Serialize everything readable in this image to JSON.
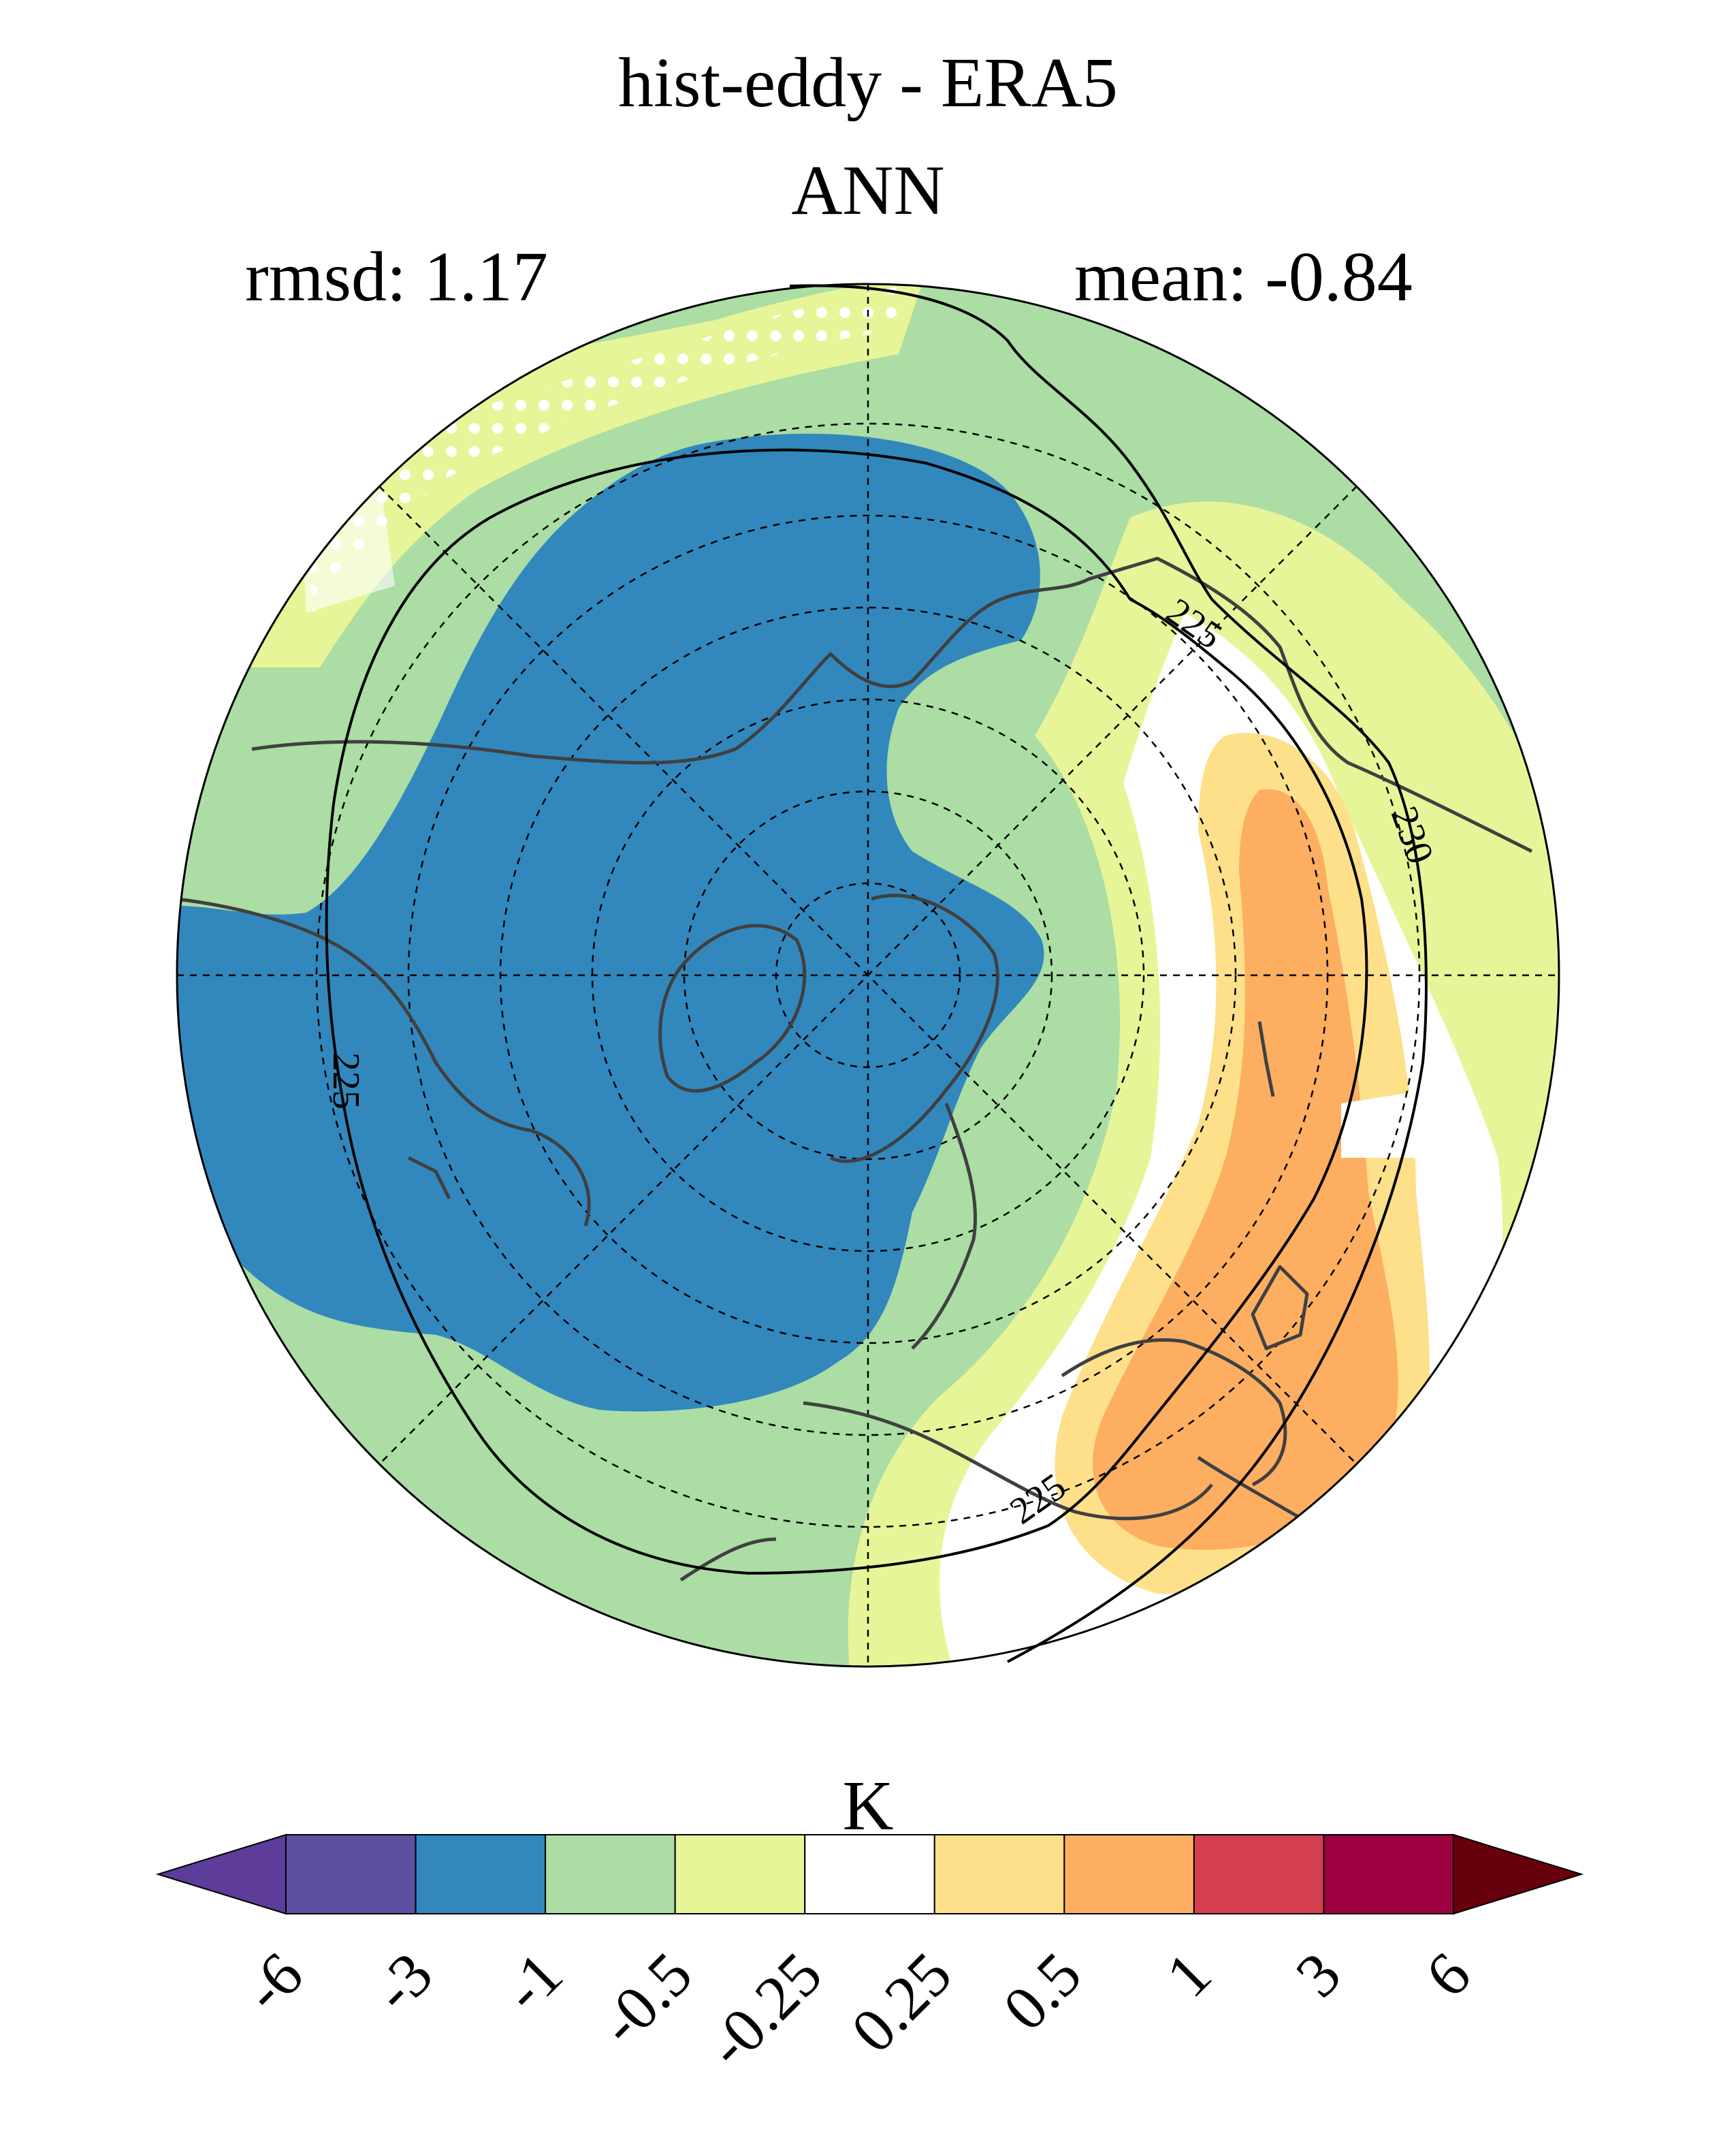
{
  "title": "hist-eddy - ERA5",
  "subtitle": "ANN",
  "stats": {
    "rmsd": "rmsd: 1.17",
    "mean": "mean: -0.84"
  },
  "colorbar": {
    "unit": "K",
    "ticks": [
      "-6",
      "-3",
      "-1",
      "-0.5",
      "-0.25",
      "0.25",
      "0.5",
      "1",
      "3",
      "6"
    ],
    "colors": [
      "#5e3c99",
      "#5e4fa2",
      "#3288bd",
      "#abdda4",
      "#e6f598",
      "#ffffff",
      "#fee08b",
      "#fdae61",
      "#d53e4f",
      "#9e0142",
      "#67000d"
    ]
  },
  "contour_labels": [
    "225",
    "225",
    "225",
    "230"
  ],
  "colors": {
    "coast": "#404040",
    "contour": "#000000"
  }
}
